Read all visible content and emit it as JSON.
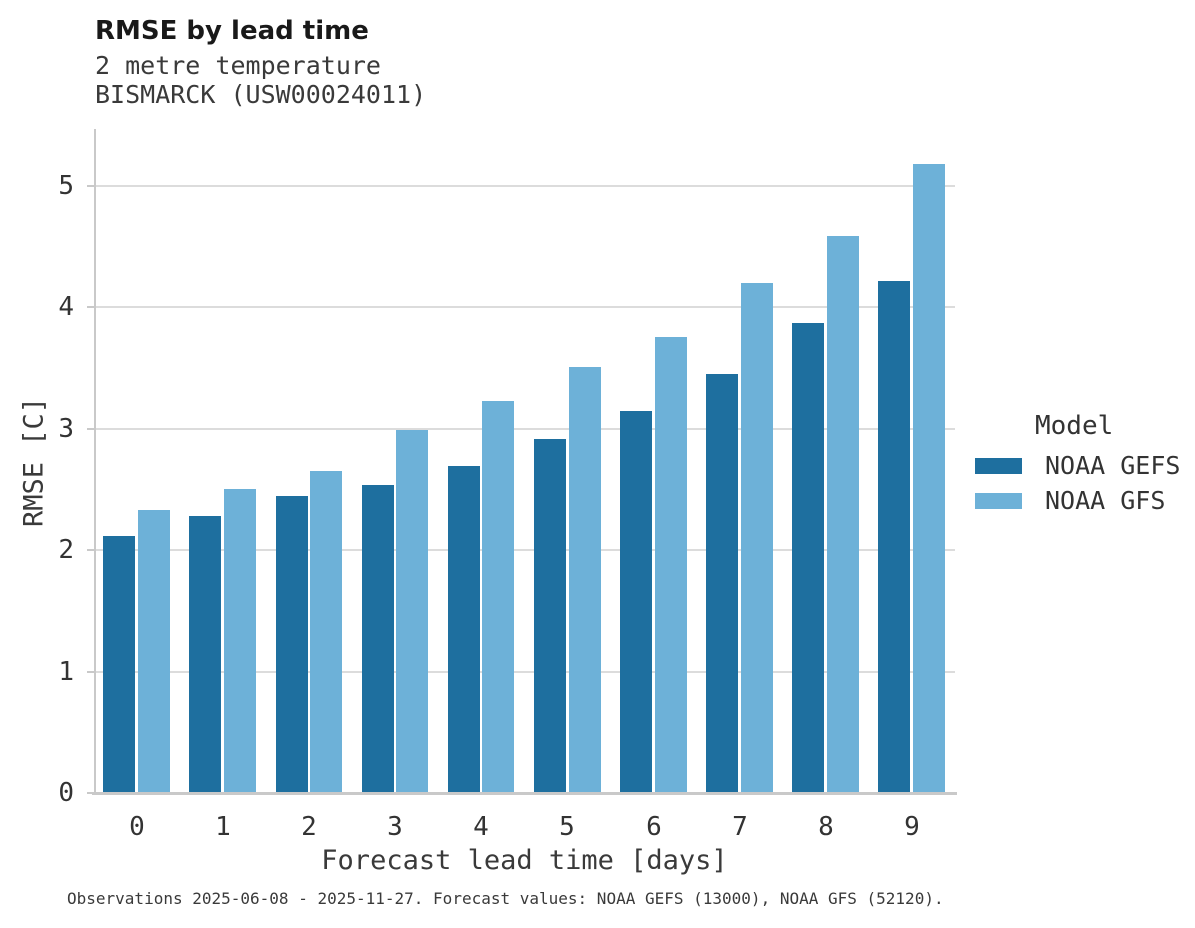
{
  "header": {
    "title": "RMSE by lead time",
    "subtitle_line1": "2 metre temperature",
    "subtitle_line2": "BISMARCK (USW00024011)"
  },
  "axes": {
    "x_label": "Forecast lead time [days]",
    "y_label": "RMSE [C]",
    "x_tick_labels": [
      "0",
      "1",
      "2",
      "3",
      "4",
      "5",
      "6",
      "7",
      "8",
      "9"
    ],
    "y_tick_labels": [
      "0",
      "1",
      "2",
      "3",
      "4",
      "5"
    ]
  },
  "legend": {
    "title": "Model",
    "entries": [
      {
        "label": "NOAA GEFS",
        "color": "#1E6F9F"
      },
      {
        "label": "NOAA GFS",
        "color": "#6DB1D8"
      }
    ]
  },
  "footer": {
    "note": "Observations 2025-06-08 - 2025-11-27. Forecast values: NOAA GEFS (13000), NOAA GFS (52120)."
  },
  "colors": {
    "gefs_bar": "#1E6F9F",
    "gfs_bar": "#6DB1D8",
    "gridline": "#dcdcdc",
    "axis_line": "#c9c9c9",
    "title_text": "#191919",
    "body_text": "#3a3a3a"
  },
  "chart_data": {
    "type": "bar",
    "title": "RMSE by lead time",
    "subtitle": "2 metre temperature",
    "station": "BISMARCK (USW00024011)",
    "xlabel": "Forecast lead time [days]",
    "ylabel": "RMSE [C]",
    "categories": [
      0,
      1,
      2,
      3,
      4,
      5,
      6,
      7,
      8,
      9
    ],
    "series": [
      {
        "name": "NOAA GEFS",
        "color": "#1E6F9F",
        "values": [
          2.12,
          2.28,
          2.45,
          2.54,
          2.69,
          2.92,
          3.15,
          3.45,
          3.87,
          4.22
        ]
      },
      {
        "name": "NOAA GFS",
        "color": "#6DB1D8",
        "values": [
          2.33,
          2.5,
          2.65,
          2.99,
          3.23,
          3.51,
          3.76,
          4.2,
          4.59,
          5.18
        ]
      }
    ],
    "ylim": [
      0,
      5.47
    ],
    "yticks": [
      0,
      1,
      2,
      3,
      4,
      5
    ],
    "grid": true,
    "legend_title": "Model",
    "legend_position": "center-right",
    "note": "Observations 2025-06-08 - 2025-11-27. Forecast values: NOAA GEFS (13000), NOAA GFS (52120)."
  }
}
